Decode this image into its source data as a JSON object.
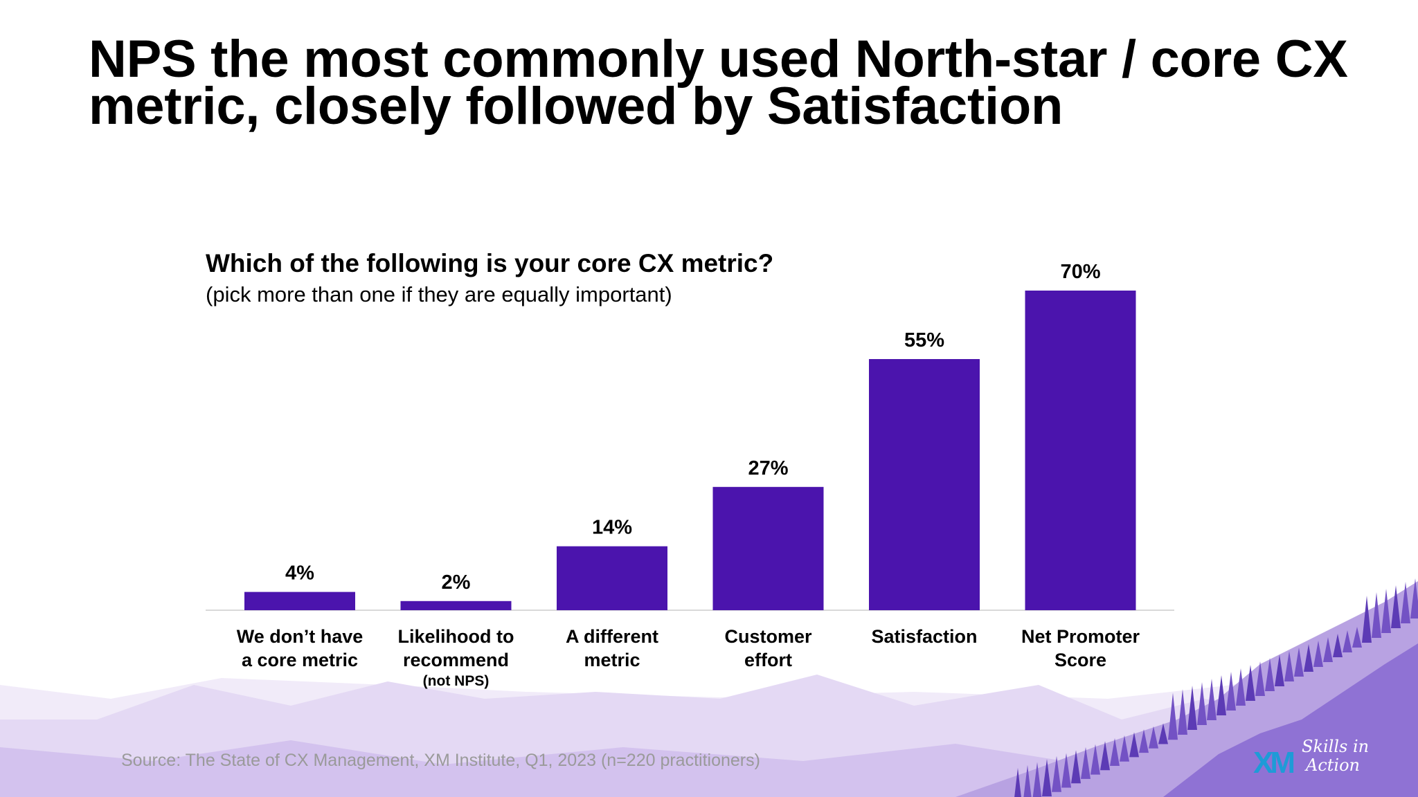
{
  "slide": {
    "title": "NPS the most commonly used North-star / core CX metric, closely followed by Satisfaction",
    "source": "Source:  The State of CX Management, XM Institute, Q1, 2023 (n=220 practitioners)",
    "logo": {
      "mark": "XM",
      "tagline_line1": "Skills in",
      "tagline_line2": "Action"
    },
    "background": {
      "mountain_colors": [
        "#ece4f7",
        "#ddd0f1",
        "#c9b6ea",
        "#a98fdd",
        "#7b5ac8"
      ],
      "icon": "pine-forest-mountains"
    }
  },
  "chart_data": {
    "type": "bar",
    "title": "Which of the following is your core CX metric?",
    "subtitle": "(pick more than one if they are equally important)",
    "xlabel": "",
    "ylabel": "",
    "categories": [
      "We don’t have\na core metric",
      "Likelihood to\nrecommend",
      "A different\nmetric",
      "Customer\neffort",
      "Satisfaction",
      "Net Promoter\nScore"
    ],
    "category_notes": [
      "",
      "(not NPS)",
      "",
      "",
      "",
      ""
    ],
    "values": [
      4,
      2,
      14,
      27,
      55,
      70
    ],
    "value_labels": [
      "4%",
      "2%",
      "14%",
      "27%",
      "55%",
      "70%"
    ],
    "ylim": [
      0,
      70
    ],
    "grid": false,
    "bar_color": "#4b14ad",
    "baseline_color": "#d9d9d9"
  }
}
